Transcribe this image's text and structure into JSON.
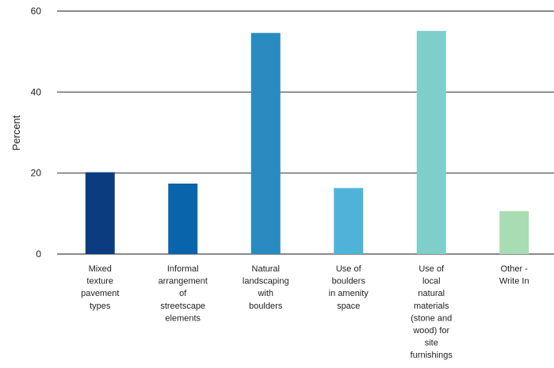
{
  "chart_data": {
    "type": "bar",
    "ylabel": "Percent",
    "xlabel": "",
    "ylim": [
      0,
      60
    ],
    "yticks": [
      "0",
      "20",
      "40",
      "60"
    ],
    "grid": true,
    "categories": [
      [
        "Mixed",
        "texture",
        "pavement",
        "types"
      ],
      [
        "Informal",
        "arrangement",
        "of",
        "streetscape",
        "elements"
      ],
      [
        "Natural",
        "landscaping",
        "with",
        "boulders"
      ],
      [
        "Use of",
        "boulders",
        "in amenity",
        "space"
      ],
      [
        "Use of",
        "local",
        "natural",
        "materials",
        "(stone and",
        "wood) for",
        "site",
        "furnishings"
      ],
      [
        "Other -",
        "Write In"
      ]
    ],
    "values": [
      20.2,
      17.4,
      54.6,
      16.3,
      55.1,
      10.6
    ],
    "colors": [
      "#0b3c80",
      "#0a64ab",
      "#2a8bc1",
      "#4fb3d9",
      "#7ecfc9",
      "#a8dcb3"
    ]
  }
}
